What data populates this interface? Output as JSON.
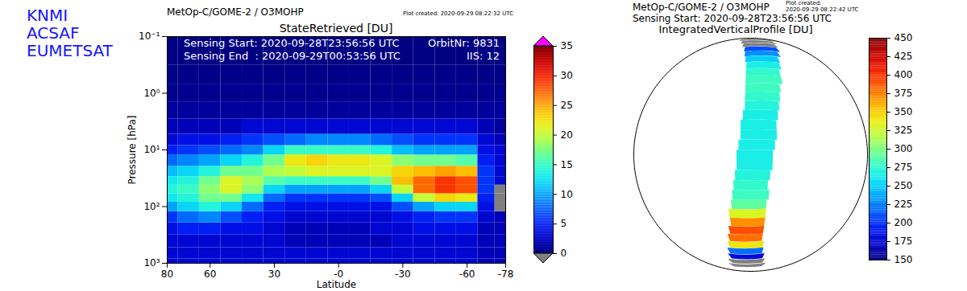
{
  "logo": [
    "KNMI",
    "ACSAF",
    "EUMETSAT"
  ],
  "chart_data": [
    {
      "type": "heatmap",
      "header": "MetOp-C/GOME-2 / O3MOHP",
      "plot_created": "Plot created: 2020-09-29 08:22:32 UTC",
      "title": "StateRetrieved [DU]",
      "sensing_start": "Sensing Start: 2020-09-28T23:56:56 UTC",
      "sensing_end": "Sensing End  : 2020-09-29T00:53:56 UTC",
      "orbit": "OrbitNr: 9831",
      "iis": "IIS: 12",
      "x_label": "Latitude",
      "y_label": "Pressure [hPa]",
      "log": "y",
      "xlim": [
        80,
        -78
      ],
      "xticks": [
        80,
        60,
        30,
        {
          "value": 0,
          "label": "-0"
        },
        -30,
        -60,
        -78
      ],
      "ylim": [
        1000,
        0.1
      ],
      "yticks": [
        {
          "value": 0.1,
          "label": "10⁻¹"
        },
        {
          "value": 1,
          "label": "10⁰"
        },
        {
          "value": 10,
          "label": "10¹"
        },
        {
          "value": 100,
          "label": "10²"
        },
        {
          "value": 1000,
          "label": "10³"
        }
      ],
      "latitudes": [
        80,
        70,
        60,
        50,
        40,
        30,
        20,
        10,
        0,
        -10,
        -20,
        -30,
        -40,
        -50,
        -60,
        -70,
        -76
      ],
      "pressures": [
        1000,
        700,
        400,
        250,
        150,
        100,
        70,
        50,
        35,
        25,
        15,
        10,
        7,
        4,
        2,
        1,
        0.5,
        0.2
      ],
      "values": [
        [
          3,
          3,
          3,
          4,
          6,
          10,
          13,
          14,
          13,
          11,
          8,
          5,
          3,
          2,
          1,
          0.5,
          0.3,
          0.1
        ],
        [
          3,
          3,
          3,
          5,
          8,
          12,
          14,
          15,
          14,
          12,
          9,
          6,
          4,
          2,
          1,
          0.5,
          0.3,
          0.1
        ],
        [
          3,
          3,
          3,
          5,
          9,
          14,
          17,
          18,
          17,
          14,
          10,
          7,
          4,
          2,
          1,
          0.5,
          0.3,
          0.1
        ],
        [
          3,
          3,
          3,
          4,
          7,
          12,
          17,
          21,
          21,
          17,
          12,
          8,
          5,
          2,
          1,
          0.5,
          0.3,
          0.1
        ],
        [
          3,
          3,
          3,
          4,
          5,
          8,
          13,
          18,
          19,
          17,
          14,
          9,
          6,
          3,
          1,
          0.5,
          0.3,
          0.1
        ],
        [
          3,
          3,
          3,
          3,
          4,
          5,
          8,
          12,
          16,
          19,
          17,
          12,
          7,
          3,
          1,
          0.5,
          0.3,
          0.1
        ],
        [
          3,
          3,
          2,
          2,
          3,
          4,
          6,
          10,
          15,
          20,
          22,
          15,
          8,
          3,
          1,
          0.5,
          0.3,
          0.1
        ],
        [
          3,
          3,
          2,
          2,
          3,
          4,
          6,
          10,
          15,
          21,
          23,
          15,
          9,
          3,
          1,
          0.5,
          0.3,
          0.1
        ],
        [
          3,
          3,
          2,
          2,
          3,
          4,
          6,
          10,
          15,
          21,
          22,
          15,
          9,
          3,
          1,
          0.5,
          0.3,
          0.1
        ],
        [
          3,
          3,
          2,
          2,
          3,
          4,
          6,
          10,
          15,
          21,
          22,
          15,
          9,
          3,
          1,
          0.5,
          0.3,
          0.1
        ],
        [
          3,
          3,
          2,
          3,
          3,
          4,
          7,
          12,
          17,
          21,
          21,
          14,
          8,
          3,
          1,
          0.5,
          0.3,
          0.1
        ],
        [
          3,
          3,
          3,
          3,
          4,
          7,
          12,
          20,
          24,
          23,
          18,
          11,
          7,
          3,
          1,
          0.5,
          0.3,
          0.1
        ],
        [
          3,
          3,
          3,
          4,
          5,
          10,
          20,
          27,
          27,
          24,
          17,
          10,
          6,
          3,
          1,
          0.5,
          0.3,
          0.1
        ],
        [
          3,
          3,
          3,
          4,
          6,
          12,
          23,
          29,
          29,
          25,
          17,
          10,
          6,
          3,
          1,
          0.5,
          0.3,
          0.1
        ],
        [
          3,
          3,
          3,
          4,
          6,
          12,
          22,
          28,
          28,
          24,
          16,
          10,
          6,
          3,
          1,
          0.5,
          0.3,
          0.1
        ],
        [
          2,
          2,
          2,
          2,
          3,
          4,
          5,
          6,
          6,
          6,
          5,
          4,
          3,
          2,
          1,
          0.5,
          0.3,
          0.1
        ],
        [
          2,
          2,
          2,
          2,
          2,
          null,
          null,
          null,
          3,
          3,
          3,
          3,
          2,
          1,
          1,
          0.5,
          0.3,
          0.1
        ]
      ],
      "colorbar": {
        "range": [
          0,
          35
        ],
        "ticks": [
          0,
          5,
          10,
          15,
          20,
          25,
          30,
          35
        ]
      }
    },
    {
      "type": "map",
      "header": "MetOp-C/GOME-2 / O3MOHP",
      "plot_created": [
        "Plot created:",
        "2020-09-29 08:22:42 UTC"
      ],
      "sensing_start": "Sensing Start: 2020-09-28T23:56:56 UTC",
      "title": "IntegratedVerticalProfile [DU]",
      "swath": {
        "lat": [
          75,
          70,
          65,
          60,
          55,
          50,
          45,
          40,
          35,
          30,
          25,
          20,
          15,
          10,
          5,
          0,
          -5,
          -10,
          -15,
          -20,
          -25,
          -30,
          -35,
          -40,
          -45,
          -50,
          -55,
          -60,
          -65,
          -70,
          -75
        ],
        "lon_west": [
          -95,
          -88,
          -84,
          -81,
          -80,
          -79,
          -78,
          -78,
          -78,
          -78,
          -78,
          -78,
          -79,
          -80,
          -80,
          -81,
          -82,
          -82,
          -83,
          -84,
          -85,
          -86,
          -88,
          -88,
          -90,
          -92,
          -94,
          -97,
          -100,
          -106,
          -115
        ],
        "lon_east": [
          -29,
          -38,
          -44,
          -47,
          -50,
          -53,
          -54,
          -56,
          -56,
          -58,
          -59,
          -60,
          -61,
          -62,
          -62,
          -63,
          -64,
          -64,
          -65,
          -66,
          -65,
          -66,
          -66,
          -66,
          -66,
          -66,
          -64,
          -63,
          -60,
          -56,
          -49
        ],
        "values": [
          null,
          null,
          null,
          210,
          230,
          250,
          265,
          275,
          280,
          280,
          275,
          270,
          265,
          265,
          265,
          265,
          265,
          265,
          270,
          275,
          280,
          290,
          330,
          370,
          390,
          380,
          340,
          220,
          180,
          null,
          null
        ]
      },
      "colorbar": {
        "range": [
          150,
          450
        ],
        "ticks": [
          150,
          175,
          200,
          225,
          250,
          275,
          300,
          325,
          350,
          375,
          400,
          425,
          450
        ]
      }
    }
  ]
}
